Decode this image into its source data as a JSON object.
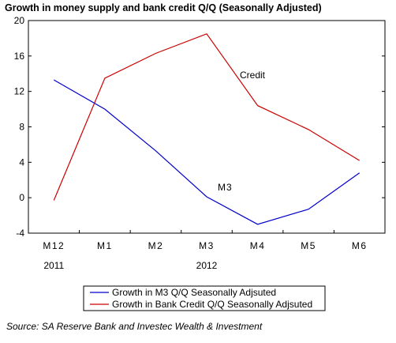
{
  "title": "Growth in money supply and bank credit Q/Q (Seasonally Adjusted)",
  "source": "Source: SA Reserve Bank and Investec Wealth & Investment",
  "chart_data": {
    "type": "line",
    "categories": [
      "M12",
      "M1",
      "M2",
      "M3",
      "M4",
      "M5",
      "M6"
    ],
    "year_labels": [
      {
        "label": "2011",
        "category": "M12"
      },
      {
        "label": "2012",
        "category": "M3"
      }
    ],
    "ylim": [
      -4,
      20
    ],
    "yticks": [
      -4,
      0,
      4,
      8,
      12,
      16,
      20
    ],
    "grid": false,
    "legend": "bottom",
    "series": [
      {
        "name": "Growth in M3 Q/Q Seasonally Adjsuted",
        "label": "M3",
        "color": "#0000cc",
        "values": [
          13.3,
          10.0,
          5.3,
          0.1,
          -3.0,
          -1.3,
          2.8
        ]
      },
      {
        "name": "Growth in Bank Credit Q/Q Seasonally Adjsuted",
        "label": "Credit",
        "color": "#cc0000",
        "values": [
          -0.3,
          13.5,
          16.3,
          18.5,
          10.4,
          7.7,
          4.2
        ]
      }
    ]
  }
}
